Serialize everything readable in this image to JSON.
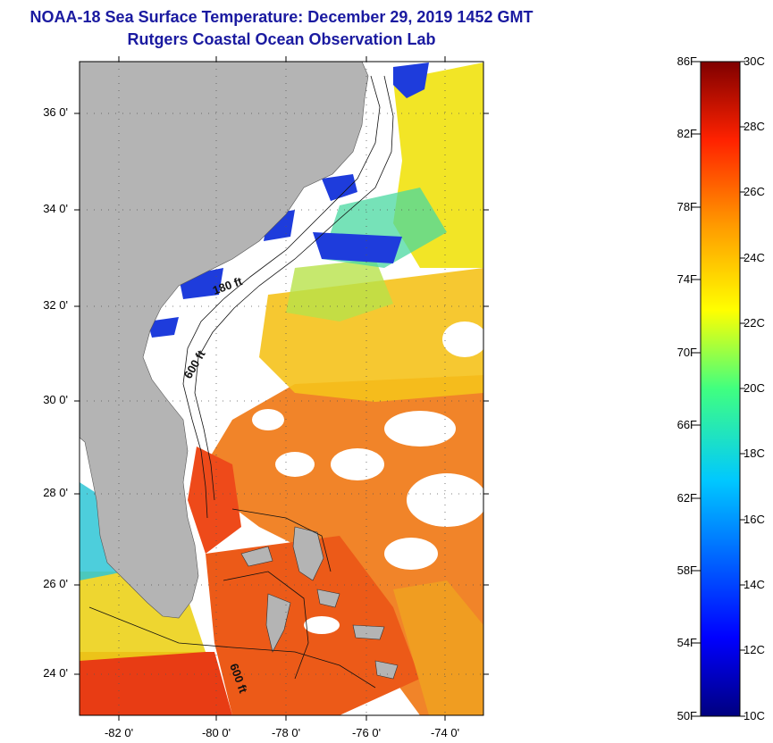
{
  "header": {
    "title": "NOAA-18 Sea Surface Temperature:  December 29, 2019 1452 GMT",
    "subtitle": "Rutgers Coastal Ocean Observation Lab"
  },
  "map": {
    "lat_labels": [
      "36 0'",
      "34 0'",
      "32 0'",
      "30 0'",
      "28 0'",
      "26 0'",
      "24 0'"
    ],
    "lon_labels": [
      "-82 0'",
      "-80 0'",
      "-78 0'",
      "-76 0'",
      "-74 0'"
    ],
    "contours": [
      {
        "label": "180 ft"
      },
      {
        "label": "600 ft"
      },
      {
        "label": "600 ft"
      }
    ],
    "colors": {
      "land": "#b4b4b4",
      "cloud": "#ffffff",
      "warm": "#f07d1e",
      "hot": "#e83c14",
      "yellow": "#f2e800",
      "cold": "#1e3cdc"
    }
  },
  "colorbar": {
    "f_labels": [
      "86F",
      "82F",
      "78F",
      "74F",
      "70F",
      "66F",
      "62F",
      "58F",
      "54F",
      "50F"
    ],
    "c_labels": [
      "30C",
      "28C",
      "26C",
      "24C",
      "22C",
      "20C",
      "18C",
      "16C",
      "14C",
      "12C",
      "10C"
    ]
  }
}
